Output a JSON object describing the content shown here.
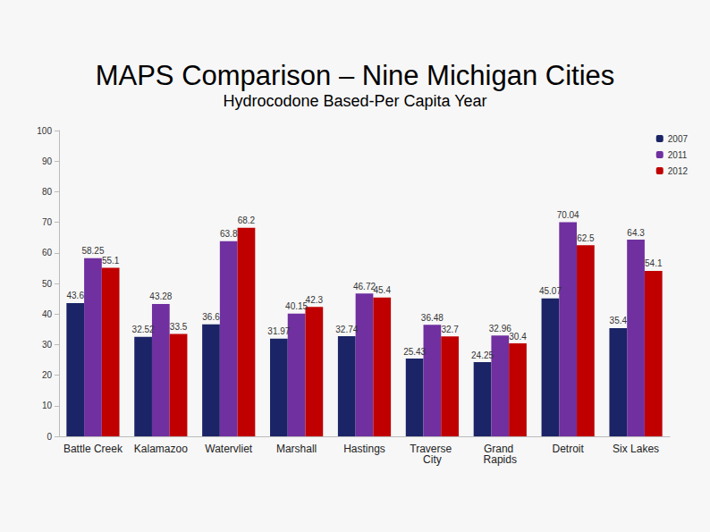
{
  "chart_data": {
    "type": "bar",
    "title": "MAPS Comparison – Nine Michigan Cities",
    "subtitle": "Hydrocodone Based-Per Capita Year",
    "categories": [
      "Battle Creek",
      "Kalamazoo",
      "Watervliet",
      "Marshall",
      "Hastings",
      "Traverse City",
      "Grand Rapids",
      "Detroit",
      "Six Lakes"
    ],
    "series": [
      {
        "name": "2007",
        "color": "#1a2466",
        "values": [
          43.6,
          32.52,
          36.6,
          31.97,
          32.74,
          25.43,
          24.25,
          45.07,
          35.4
        ]
      },
      {
        "name": "2011",
        "color": "#7030a0",
        "values": [
          58.25,
          43.28,
          63.8,
          40.15,
          46.72,
          36.48,
          32.96,
          70.04,
          64.3
        ]
      },
      {
        "name": "2012",
        "color": "#c00000",
        "values": [
          55.1,
          33.5,
          68.2,
          42.3,
          45.4,
          32.7,
          30.4,
          62.5,
          54.1
        ]
      }
    ],
    "ylim": [
      0,
      100
    ],
    "yticks": [
      0,
      10,
      20,
      30,
      40,
      50,
      60,
      70,
      80,
      90,
      100
    ],
    "grid": false,
    "legend": "top-right",
    "data_labels": true
  }
}
